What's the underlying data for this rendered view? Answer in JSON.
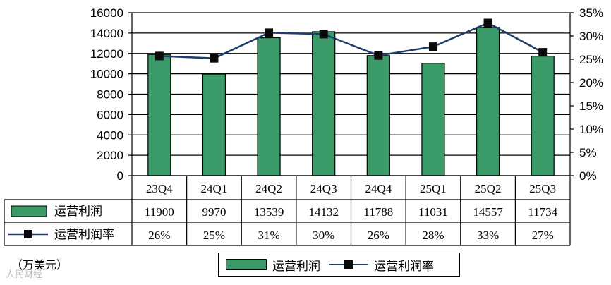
{
  "chart_data": {
    "type": "bar",
    "categories": [
      "23Q4",
      "24Q1",
      "24Q2",
      "24Q3",
      "24Q4",
      "25Q1",
      "25Q2",
      "25Q3"
    ],
    "series": [
      {
        "name": "运营利润",
        "type": "bar",
        "axis": "left",
        "values": [
          11900,
          9970,
          13539,
          14132,
          11788,
          11031,
          14557,
          11734
        ]
      },
      {
        "name": "运营利润率",
        "type": "line",
        "axis": "right",
        "marker": "square",
        "values": [
          25.7,
          25.2,
          30.7,
          30.4,
          25.8,
          27.7,
          32.8,
          26.5
        ]
      }
    ],
    "table": {
      "bar_values": [
        "11900",
        "9970",
        "13539",
        "14132",
        "11788",
        "11031",
        "14557",
        "11734"
      ],
      "rate_values": [
        "26%",
        "25%",
        "31%",
        "30%",
        "26%",
        "28%",
        "33%",
        "27%"
      ]
    },
    "left_axis": {
      "ylim": [
        0,
        16000
      ],
      "ticks": [
        "16000",
        "14000",
        "12000",
        "10000",
        "8000",
        "6000",
        "4000",
        "2000",
        "0"
      ]
    },
    "right_axis": {
      "ylim": [
        0,
        35
      ],
      "ticks": [
        "35%",
        "30%",
        "25%",
        "20%",
        "15%",
        "10%",
        "5%",
        "0%"
      ]
    },
    "unit_note": "（万美元）",
    "legend": {
      "placement": "bottom",
      "bar_label": "运营利润",
      "line_label": "运营利润率"
    },
    "grid": true,
    "colors": {
      "bar": "#3a9a68",
      "line": "#1d3e6b",
      "marker": "#0a0a0a"
    }
  },
  "watermark": "人民财经"
}
